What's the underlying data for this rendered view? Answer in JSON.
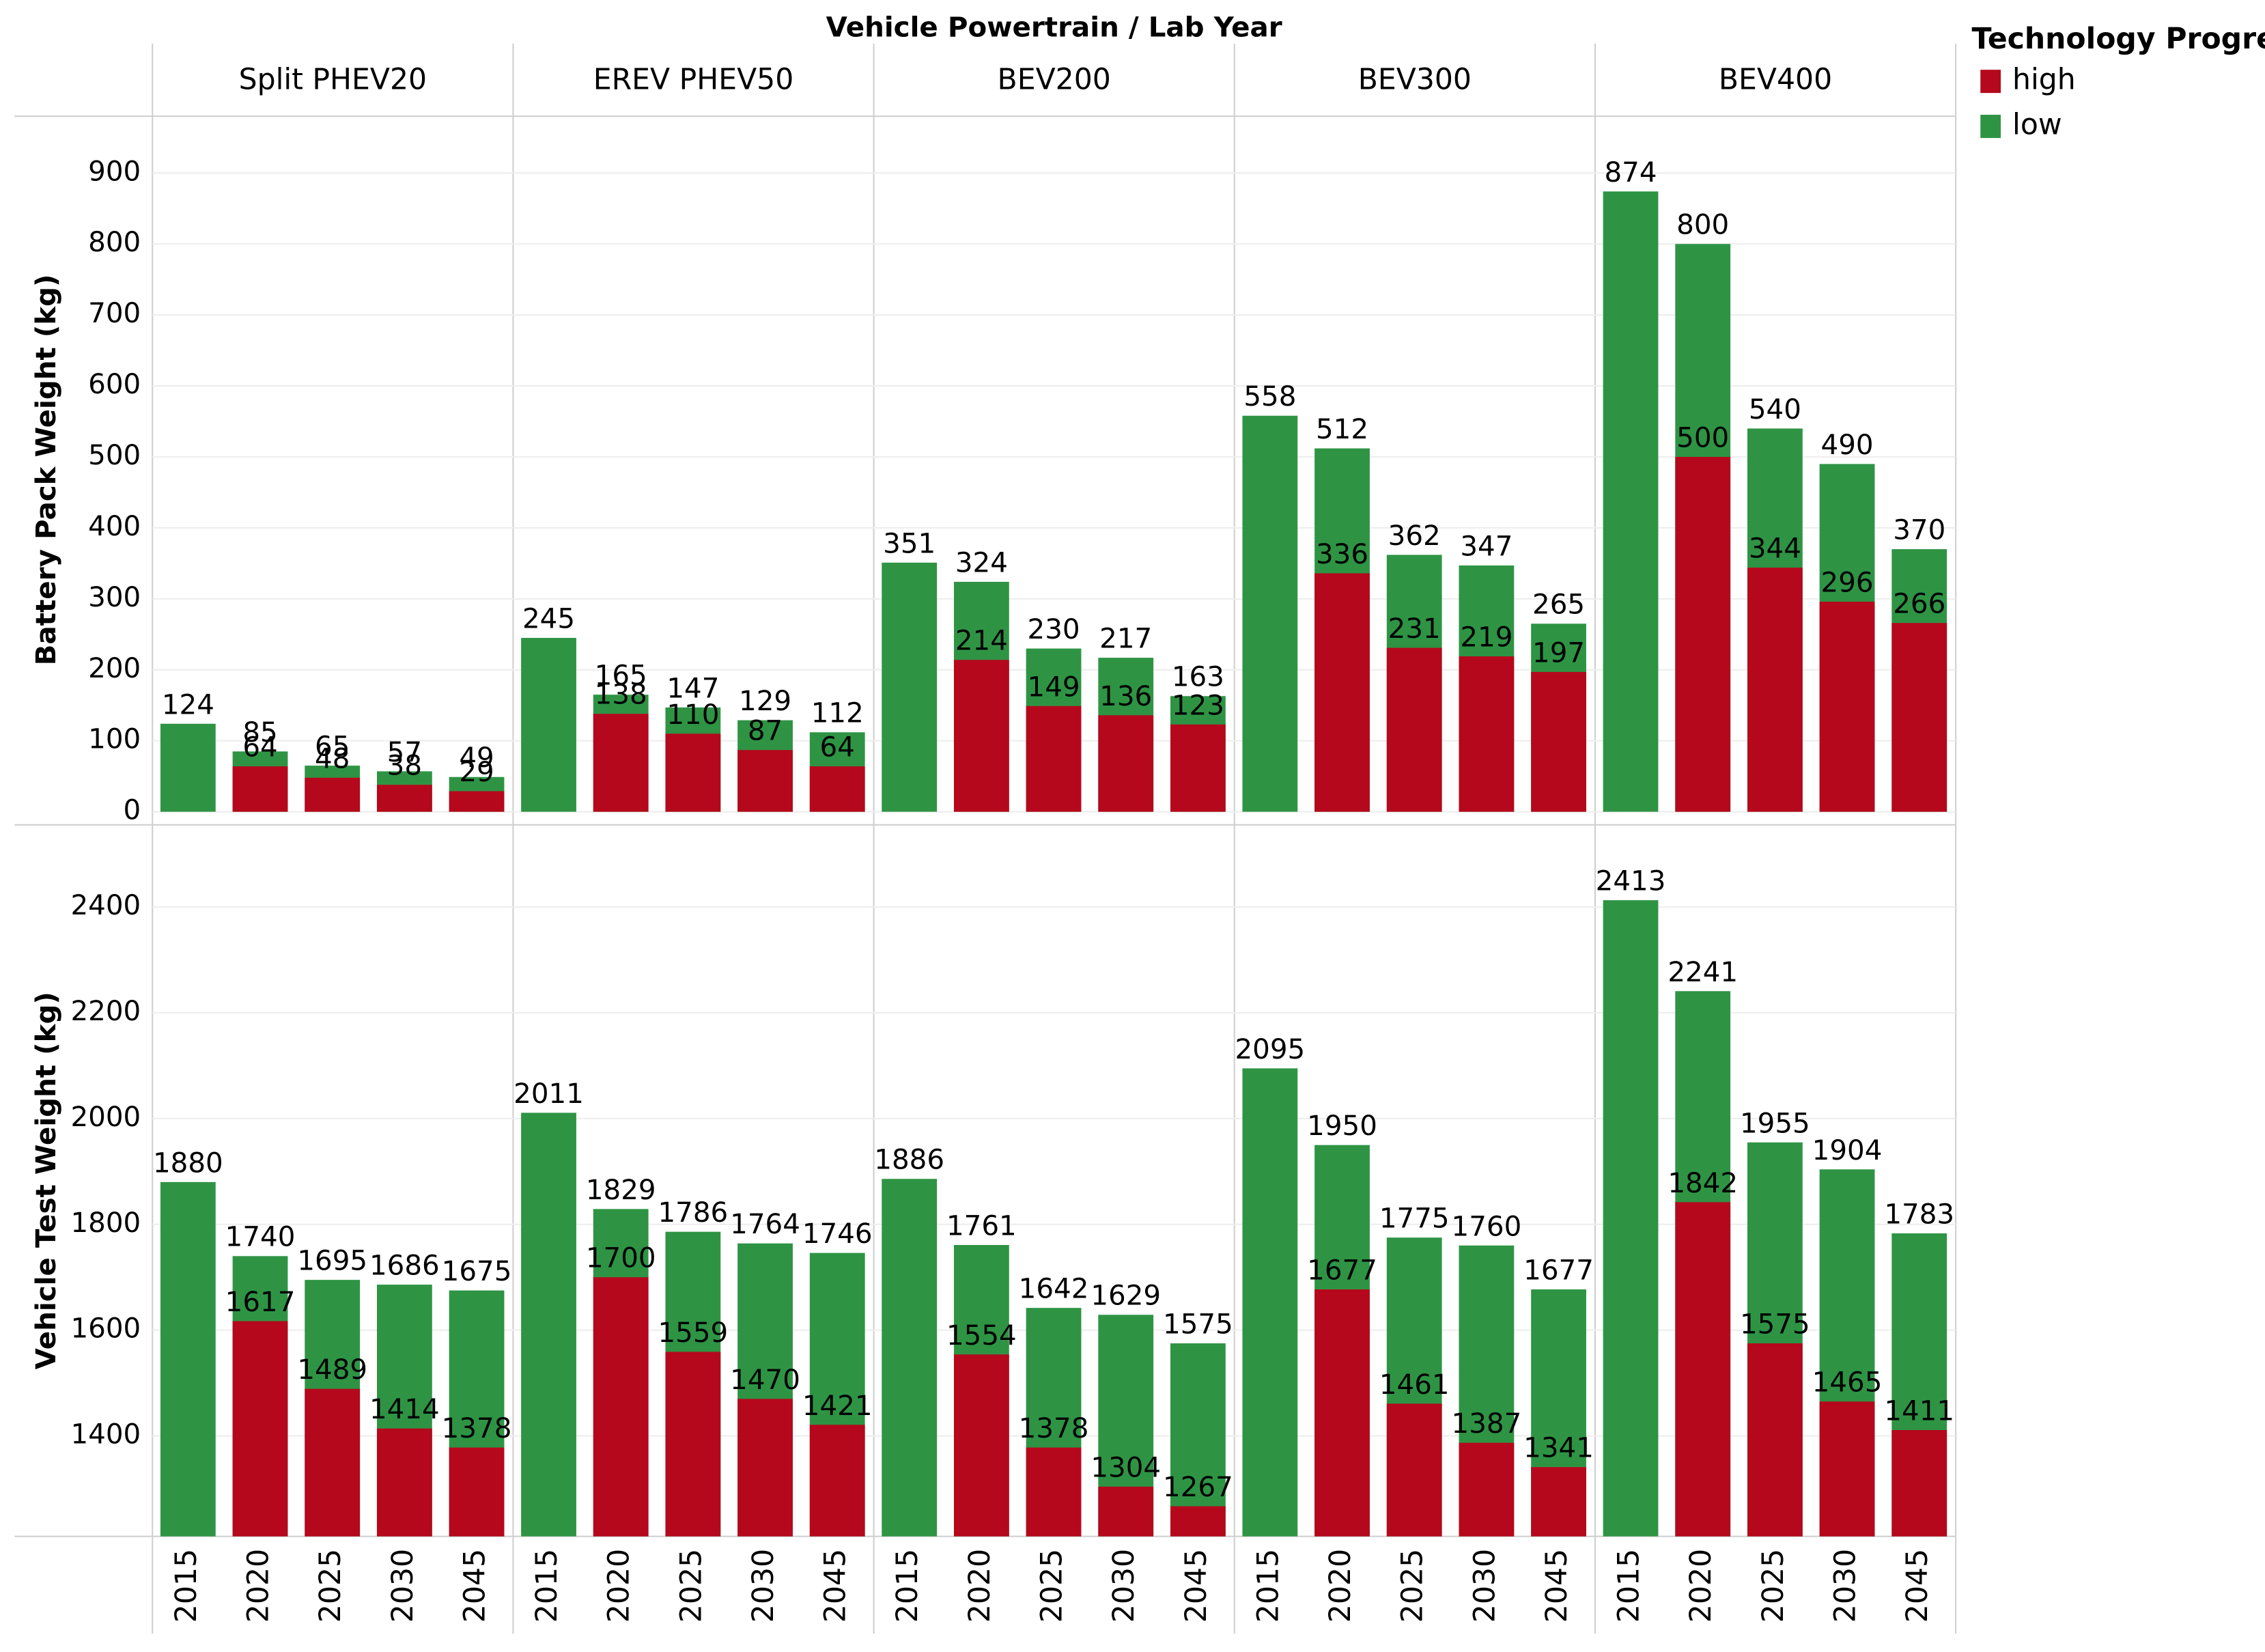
{
  "chart_data": {
    "type": "bar",
    "title": "Vehicle Powertrain / Lab Year",
    "legend_title": "Technology Progress",
    "facets": [
      "Split PHEV20",
      "EREV PHEV50",
      "BEV200",
      "BEV300",
      "BEV400"
    ],
    "categories": [
      "2015",
      "2020",
      "2025",
      "2030",
      "2045"
    ],
    "legend_names": [
      "high",
      "low"
    ],
    "legend_colors": [
      "#b5081c",
      "#2e9444"
    ],
    "panels": [
      {
        "y_label": "Battery Pack Weight (kg)",
        "ylim": [
          0,
          980
        ],
        "yticks": [
          0,
          100,
          200,
          300,
          400,
          500,
          600,
          700,
          800,
          900
        ],
        "grid": true,
        "series": [
          {
            "name": "low",
            "color": "#2e9444",
            "values": [
              [
                124,
                85,
                65,
                57,
                49
              ],
              [
                245,
                165,
                147,
                129,
                112
              ],
              [
                351,
                324,
                230,
                217,
                163
              ],
              [
                558,
                512,
                362,
                347,
                265
              ],
              [
                874,
                800,
                540,
                490,
                370
              ]
            ]
          },
          {
            "name": "high",
            "color": "#b5081c",
            "values": [
              [
                null,
                64,
                48,
                38,
                29
              ],
              [
                null,
                138,
                110,
                87,
                64
              ],
              [
                null,
                214,
                149,
                136,
                123
              ],
              [
                null,
                336,
                231,
                219,
                197
              ],
              [
                null,
                500,
                344,
                296,
                266
              ]
            ]
          }
        ]
      },
      {
        "y_label": "Vehicle Test Weight (kg)",
        "ylim": [
          1210,
          2550
        ],
        "yticks": [
          1400,
          1600,
          1800,
          2000,
          2200,
          2400
        ],
        "grid": true,
        "series": [
          {
            "name": "low",
            "color": "#2e9444",
            "values": [
              [
                1880,
                1740,
                1695,
                1686,
                1675
              ],
              [
                2011,
                1829,
                1786,
                1764,
                1746
              ],
              [
                1886,
                1761,
                1642,
                1629,
                1575
              ],
              [
                2095,
                1950,
                1775,
                1760,
                1677
              ],
              [
                2413,
                2241,
                1955,
                1904,
                1783
              ]
            ]
          },
          {
            "name": "high",
            "color": "#b5081c",
            "values": [
              [
                null,
                1617,
                1489,
                1414,
                1378
              ],
              [
                null,
                1700,
                1559,
                1470,
                1421
              ],
              [
                null,
                1554,
                1378,
                1304,
                1267
              ],
              [
                null,
                1677,
                1461,
                1387,
                1341
              ],
              [
                null,
                1842,
                1575,
                1465,
                1411
              ]
            ]
          }
        ]
      }
    ]
  }
}
